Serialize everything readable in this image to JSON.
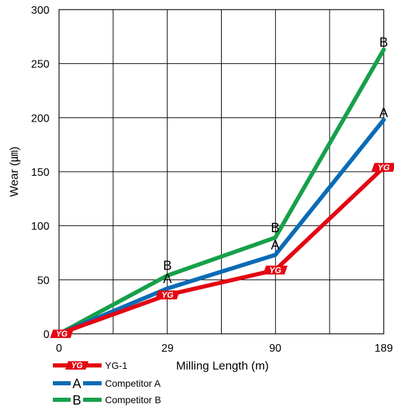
{
  "chart_data": {
    "type": "line",
    "x": [
      0,
      29,
      90,
      189
    ],
    "xticks": [
      "0",
      "29",
      "90",
      "189"
    ],
    "yticks": [
      "0",
      "50",
      "100",
      "150",
      "200",
      "250",
      "300"
    ],
    "ylim": [
      0,
      300
    ],
    "xlabel": "Milling Length (m)",
    "ylabel": "Wear (㎛)",
    "grid": true,
    "legend_position": "bottom-left",
    "series": [
      {
        "name": "YG-1",
        "marker": "YG",
        "color": "#e30613",
        "values": [
          0,
          36,
          59,
          154
        ]
      },
      {
        "name": "Competitor A",
        "marker": "A",
        "color": "#0a6bb5",
        "values": [
          0,
          42,
          73,
          198
        ]
      },
      {
        "name": "Competitor B",
        "marker": "B",
        "color": "#16a04a",
        "values": [
          0,
          54,
          89,
          263
        ]
      }
    ]
  }
}
